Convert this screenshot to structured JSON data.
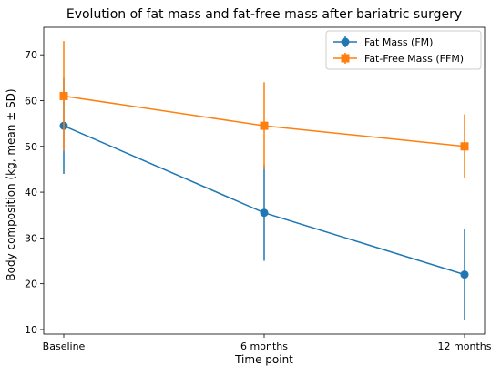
{
  "chart_data": {
    "type": "line",
    "title": "Evolution of fat mass and fat-free mass after bariatric surgery",
    "xlabel": "Time point",
    "ylabel": "Body composition (kg, mean ± SD)",
    "categories": [
      "Baseline",
      "6 months",
      "12 months"
    ],
    "ylim": [
      9,
      76
    ],
    "yticks": [
      10,
      20,
      30,
      40,
      50,
      60,
      70
    ],
    "grid": false,
    "legend_position": "top-right",
    "series": [
      {
        "name": "Fat Mass (FM)",
        "color": "#1f77b4",
        "marker": "circle",
        "values": [
          54.5,
          35.5,
          22.0
        ],
        "sd": [
          10.5,
          10.5,
          10.0
        ]
      },
      {
        "name": "Fat-Free Mass (FFM)",
        "color": "#ff7f0e",
        "marker": "square",
        "values": [
          61.0,
          54.5,
          50.0
        ],
        "sd": [
          12.0,
          9.5,
          7.0
        ]
      }
    ]
  }
}
